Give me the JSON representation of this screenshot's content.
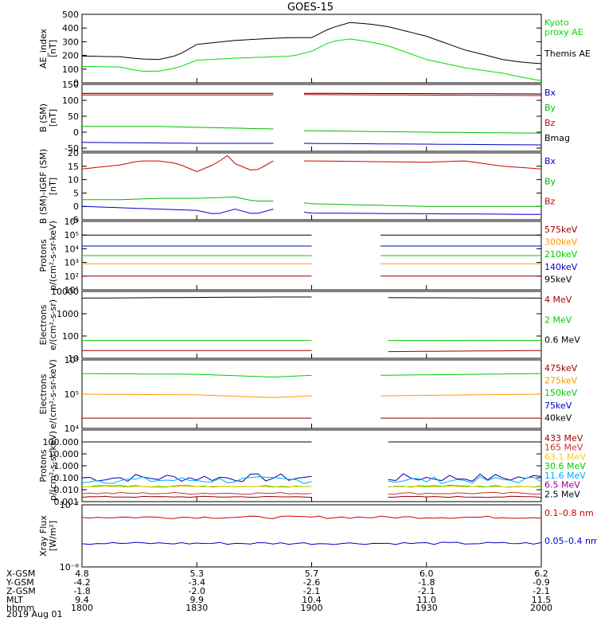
{
  "title": "GOES-15",
  "date_label": "2019 Aug 01",
  "chart_data": [
    {
      "type": "line",
      "ylabel": [
        "AE_index",
        "[nT]"
      ],
      "ylim": [
        0,
        500
      ],
      "yscale": "linear",
      "ticks": [
        "500",
        "400",
        "300",
        "200",
        "100",
        "0"
      ],
      "tick_values": [
        500,
        400,
        300,
        200,
        100,
        0
      ],
      "legend": [
        {
          "label": "Kyoto\nproxy AE",
          "color": "#00dd00"
        },
        {
          "label": "Themis AE",
          "color": "#000000"
        }
      ],
      "series": [
        {
          "name": "Themis AE",
          "color": "#000000",
          "x": [
            1800,
            1810,
            1815,
            1820,
            1825,
            1830,
            1840,
            1850,
            1855,
            1900,
            1905,
            1910,
            1915,
            1920,
            1930,
            1940,
            1950,
            1955,
            2000
          ],
          "y": [
            195,
            190,
            175,
            170,
            200,
            280,
            310,
            325,
            330,
            330,
            400,
            440,
            430,
            410,
            340,
            240,
            170,
            150,
            140
          ]
        },
        {
          "name": "Kyoto proxy AE",
          "color": "#00dd00",
          "x": [
            1800,
            1810,
            1815,
            1820,
            1825,
            1830,
            1840,
            1850,
            1855,
            1900,
            1905,
            1910,
            1915,
            1920,
            1930,
            1940,
            1950,
            1955,
            2000
          ],
          "y": [
            120,
            115,
            85,
            85,
            110,
            165,
            180,
            190,
            195,
            230,
            300,
            320,
            300,
            270,
            170,
            110,
            70,
            40,
            15
          ]
        }
      ]
    },
    {
      "type": "line",
      "ylabel": [
        "B (SM)",
        "[nT]"
      ],
      "ylim": [
        -60,
        150
      ],
      "yscale": "linear",
      "ticks": [
        "150",
        "100",
        "50",
        "0",
        "-50"
      ],
      "tick_values": [
        150,
        100,
        50,
        0,
        -50
      ],
      "legend": [
        {
          "label": "Bx",
          "color": "#0000cc"
        },
        {
          "label": "By",
          "color": "#00bb00"
        },
        {
          "label": "Bz",
          "color": "#cc0000"
        },
        {
          "label": "Bmag",
          "color": "#000000"
        }
      ],
      "gaps": [
        [
          1850,
          1857
        ]
      ],
      "series": [
        {
          "name": "Bmag",
          "color": "#000000",
          "x": [
            1800,
            1850,
            1857,
            2000
          ],
          "y": [
            122,
            122,
            122,
            120
          ]
        },
        {
          "name": "Bz",
          "color": "#cc0000",
          "x": [
            1800,
            1850,
            1857,
            2000
          ],
          "y": [
            117,
            117,
            118,
            115
          ]
        },
        {
          "name": "By",
          "color": "#00bb00",
          "x": [
            1800,
            1820,
            1850,
            1857,
            1930,
            2000
          ],
          "y": [
            18,
            18,
            10,
            5,
            0,
            -3
          ]
        },
        {
          "name": "Bx",
          "color": "#0000cc",
          "x": [
            1800,
            1830,
            1850,
            1857,
            2000
          ],
          "y": [
            -32,
            -35,
            -35,
            -35,
            -40
          ]
        }
      ]
    },
    {
      "type": "line",
      "ylabel": [
        "B (SM)-IGRF (SM)",
        "[nT]"
      ],
      "ylim": [
        -5,
        20
      ],
      "yscale": "linear",
      "ticks": [
        "20",
        "15",
        "10",
        "5",
        "0",
        "-5"
      ],
      "tick_values": [
        20,
        15,
        10,
        5,
        0,
        -5
      ],
      "legend": [
        {
          "label": "Bx",
          "color": "#0000cc"
        },
        {
          "label": "By",
          "color": "#00bb00"
        },
        {
          "label": "Bz",
          "color": "#cc0000"
        }
      ],
      "gaps": [
        [
          1850,
          1857
        ]
      ],
      "series": [
        {
          "name": "Bz",
          "color": "#cc0000",
          "x": [
            1800,
            1810,
            1815,
            1820,
            1825,
            1830,
            1835,
            1838,
            1840,
            1845,
            1850,
            1857,
            1900,
            1930,
            1940,
            1950,
            2000
          ],
          "y": [
            14,
            15.5,
            17,
            17,
            16,
            13,
            16,
            19,
            16,
            13,
            17,
            17,
            17,
            16.5,
            17,
            15,
            14
          ]
        },
        {
          "name": "By",
          "color": "#00bb00",
          "x": [
            1800,
            1810,
            1820,
            1830,
            1840,
            1845,
            1850,
            1857,
            1900,
            1930,
            2000
          ],
          "y": [
            2.5,
            2.5,
            3,
            3,
            3.5,
            2,
            2,
            1.5,
            1,
            0,
            0
          ]
        },
        {
          "name": "Bx",
          "color": "#0000cc",
          "x": [
            1800,
            1810,
            1820,
            1830,
            1835,
            1840,
            1845,
            1850,
            1857,
            1900,
            2000
          ],
          "y": [
            0,
            -0.5,
            -1,
            -1.5,
            -3,
            -1,
            -3,
            -1,
            -2,
            -2.5,
            -3
          ]
        }
      ]
    },
    {
      "type": "line",
      "ylabel": [
        "Protons",
        "p/(cm²-s-sr-keV)"
      ],
      "ylim": [
        1,
        6
      ],
      "yscale": "log",
      "ticks": [
        "10⁶",
        "10⁵",
        "10⁴",
        "10³",
        "10²",
        "10¹"
      ],
      "tick_values": [
        6,
        5,
        4,
        3,
        2,
        1
      ],
      "legend": [
        {
          "label": "575keV",
          "color": "#990000"
        },
        {
          "label": "300keV",
          "color": "#ff9900"
        },
        {
          "label": "210keV",
          "color": "#00cc00"
        },
        {
          "label": "140keV",
          "color": "#0000cc"
        },
        {
          "label": "95keV",
          "color": "#000000"
        }
      ],
      "gaps": [
        [
          1900,
          1918
        ]
      ],
      "series": [
        {
          "name": "95keV",
          "color": "#000000",
          "x": [
            1800,
            1900,
            1918,
            2000
          ],
          "y": [
            5,
            5,
            5,
            5
          ]
        },
        {
          "name": "140keV",
          "color": "#0000cc",
          "x": [
            1800,
            1900,
            1918,
            2000
          ],
          "y": [
            4.2,
            4.2,
            4.2,
            4.2
          ]
        },
        {
          "name": "210keV",
          "color": "#00cc00",
          "x": [
            1800,
            1900,
            1918,
            2000
          ],
          "y": [
            3.5,
            3.5,
            3.5,
            3.5
          ]
        },
        {
          "name": "300keV",
          "color": "#ff9900",
          "x": [
            1800,
            1900,
            1918,
            2000
          ],
          "y": [
            2.9,
            2.9,
            2.9,
            2.9
          ]
        },
        {
          "name": "575keV",
          "color": "#990000",
          "x": [
            1800,
            1900,
            1918,
            2000
          ],
          "y": [
            2,
            2,
            2,
            2
          ]
        }
      ]
    },
    {
      "type": "line",
      "ylabel": [
        "Electrons",
        "e/(cm²-s-sr)"
      ],
      "ylim": [
        1,
        4
      ],
      "yscale": "log",
      "ticks": [
        "10000",
        "1000",
        "100",
        "10"
      ],
      "tick_values": [
        4,
        3,
        2,
        1
      ],
      "legend": [
        {
          "label": "4 MeV",
          "color": "#990000"
        },
        {
          "label": "2 MeV",
          "color": "#00cc00"
        },
        {
          "label": "0.6 MeV",
          "color": "#000000"
        }
      ],
      "gaps": [
        [
          1900,
          1920
        ]
      ],
      "series": [
        {
          "name": "0.6 MeV",
          "color": "#000000",
          "x": [
            1800,
            1850,
            1900,
            1920,
            2000
          ],
          "y": [
            3.7,
            3.75,
            3.75,
            3.72,
            3.7
          ]
        },
        {
          "name": "2 MeV",
          "color": "#00cc00",
          "x": [
            1800,
            1900,
            1920,
            2000
          ],
          "y": [
            1.8,
            1.8,
            1.8,
            1.8
          ]
        },
        {
          "name": "4 MeV",
          "color": "#990000",
          "x": [
            1800,
            1900,
            1920,
            2000
          ],
          "y": [
            1.35,
            1.35,
            1.3,
            1.35
          ]
        }
      ]
    },
    {
      "type": "line",
      "ylabel": [
        "Electrons",
        "e/(cm²-s-sr-keV)"
      ],
      "ylim": [
        4,
        6
      ],
      "yscale": "log",
      "ticks": [
        "10⁶",
        "10⁵",
        "10⁴"
      ],
      "tick_values": [
        6,
        5,
        4
      ],
      "legend": [
        {
          "label": "475keV",
          "color": "#990000"
        },
        {
          "label": "275keV",
          "color": "#ff9900"
        },
        {
          "label": "150keV",
          "color": "#00cc00"
        },
        {
          "label": "75keV",
          "color": "#0000cc"
        },
        {
          "label": "40keV",
          "color": "#000000"
        }
      ],
      "gaps": [
        [
          1900,
          1917
        ]
      ],
      "series": [
        {
          "name": "150keV",
          "color": "#00cc00",
          "x": [
            1800,
            1830,
            1850,
            1900,
            1917,
            2000
          ],
          "y": [
            5.6,
            5.58,
            5.5,
            5.55,
            5.55,
            5.6
          ]
        },
        {
          "name": "275keV",
          "color": "#ff9900",
          "x": [
            1800,
            1830,
            1850,
            1900,
            1917,
            2000
          ],
          "y": [
            5,
            4.98,
            4.9,
            4.95,
            4.95,
            5
          ]
        },
        {
          "name": "475keV",
          "color": "#990000",
          "x": [
            1800,
            1900,
            1917,
            2000
          ],
          "y": [
            4.3,
            4.3,
            4.3,
            4.3
          ]
        }
      ]
    },
    {
      "type": "line",
      "ylabel": [
        "Protons",
        "p/(cm²-s-sr-keV)"
      ],
      "ylim": [
        -3,
        3
      ],
      "yscale": "log",
      "ticks": [
        "100.000",
        "10.000",
        "1.000",
        "0.100",
        "0.010",
        "0.001"
      ],
      "tick_values": [
        2,
        1,
        0,
        -1,
        -2,
        -3
      ],
      "legend": [
        {
          "label": "433 MeV",
          "color": "#990000"
        },
        {
          "label": "165 MeV",
          "color": "#cc3333"
        },
        {
          "label": "63.1 MeV",
          "color": "#ffcc00"
        },
        {
          "label": "30.6 MeV",
          "color": "#00cc00"
        },
        {
          "label": "11.6 MeV",
          "color": "#00aaff"
        },
        {
          "label": "6.5 MeV",
          "color": "#990099"
        },
        {
          "label": "2.5 MeV",
          "color": "#000000"
        }
      ],
      "gaps": [
        [
          1900,
          1920
        ]
      ],
      "series": [
        {
          "name": "2.5 MeV",
          "color": "#000000",
          "x": [
            1800,
            1900,
            1920,
            2000
          ],
          "y": [
            2,
            2,
            2,
            2
          ]
        },
        {
          "name": "6.5 MeV",
          "color": "#0000aa",
          "x": [
            1800,
            1900,
            1920,
            2000
          ],
          "y": [
            -1,
            -1,
            -1,
            -1
          ],
          "noise": 0.35
        },
        {
          "name": "11.6 MeV",
          "color": "#00aaff",
          "x": [
            1800,
            1900,
            1920,
            2000
          ],
          "y": [
            -1.2,
            -1.2,
            -1.2,
            -1.2
          ],
          "noise": 0.3
        },
        {
          "name": "30.6 MeV",
          "color": "#00cc00",
          "x": [
            1800,
            1900,
            1920,
            2000
          ],
          "y": [
            -1.7,
            -1.7,
            -1.7,
            -1.7
          ],
          "noise": 0.08
        },
        {
          "name": "63.1 MeV",
          "color": "#ffcc00",
          "x": [
            1800,
            1900,
            1920,
            2000
          ],
          "y": [
            -1.75,
            -1.75,
            -1.75,
            -1.75
          ],
          "noise": 0.05
        },
        {
          "name": "165 MeV",
          "color": "#cc3333",
          "x": [
            1800,
            1900,
            1920,
            2000
          ],
          "y": [
            -2.3,
            -2.3,
            -2.3,
            -2.3
          ],
          "noise": 0.08
        },
        {
          "name": "433 MeV",
          "color": "#990000",
          "x": [
            1800,
            1900,
            1920,
            2000
          ],
          "y": [
            -2.6,
            -2.6,
            -2.6,
            -2.6
          ],
          "noise": 0.05
        }
      ]
    },
    {
      "type": "line",
      "ylabel": [
        "Xray Flux",
        "[W/m²]"
      ],
      "ylim": [
        -8,
        -7
      ],
      "yscale": "log",
      "ticks": [
        "10⁻⁷",
        "10⁻⁸"
      ],
      "tick_values": [
        -7,
        -8
      ],
      "legend": [
        {
          "label": "0.1–0.8 nm",
          "color": "#cc0000"
        },
        {
          "label": "0.05–0.4 nm",
          "color": "#0000cc"
        }
      ],
      "series": [
        {
          "name": "0.1–0.8 nm",
          "color": "#cc0000",
          "x": [
            1800,
            1900,
            2000
          ],
          "y": [
            -7.2,
            -7.2,
            -7.2
          ],
          "noise": 0.02
        },
        {
          "name": "0.05–0.4 nm",
          "color": "#0000cc",
          "x": [
            1800,
            1900,
            2000
          ],
          "y": [
            -7.62,
            -7.62,
            -7.62
          ],
          "noise": 0.02
        }
      ]
    }
  ],
  "x_axis": {
    "range": [
      1800,
      2000
    ],
    "major_ticks": [
      1800,
      1830,
      1900,
      1930,
      2000
    ],
    "rows": [
      {
        "label": "X-GSM",
        "values": [
          "4.8",
          "5.3",
          "5.7",
          "6.0",
          "6.2"
        ]
      },
      {
        "label": "Y-GSM",
        "values": [
          "-4.2",
          "-3.4",
          "-2.6",
          "-1.8",
          "-0.9"
        ]
      },
      {
        "label": "Z-GSM",
        "values": [
          "-1.8",
          "-2.0",
          "-2.1",
          "-2.1",
          "-2.1"
        ]
      },
      {
        "label": "MLT",
        "values": [
          "9.4",
          "9.9",
          "10.4",
          "11.0",
          "11.5"
        ]
      },
      {
        "label": "hhmm",
        "values": [
          "1800",
          "1830",
          "1900",
          "1930",
          "2000"
        ]
      }
    ]
  }
}
